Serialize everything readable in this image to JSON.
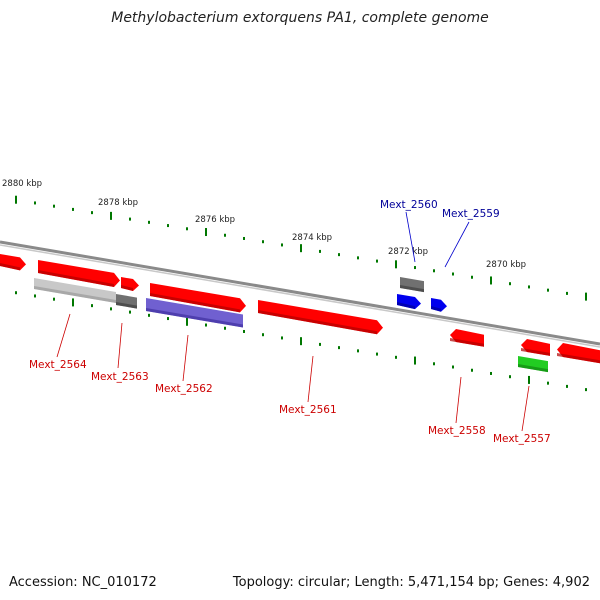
{
  "title": "Methylobacterium extorquens PA1, complete genome",
  "footer": {
    "accession": "Accession: NC_010172",
    "summary": "Topology: circular; Length: 5,471,154 bp; Genes: 4,902"
  },
  "colors": {
    "red_gene": "#ff0000",
    "blue_gene": "#0000ee",
    "grey_gene": "#707070",
    "light_grey_gene": "#c8c8c8",
    "purple_gene": "#7060d0",
    "green_gene": "#22cc22",
    "tick_green": "#007700",
    "label_red": "#cc0000",
    "label_blue": "#000099"
  },
  "scale_labels": [
    "2880 kbp",
    "2878 kbp",
    "2876 kbp",
    "2874 kbp",
    "2872 kbp",
    "2870 kbp"
  ],
  "genes": [
    {
      "label": "Mext_2564",
      "color": "red"
    },
    {
      "label": "Mext_2563",
      "color": "red"
    },
    {
      "label": "Mext_2562",
      "color": "red"
    },
    {
      "label": "Mext_2561",
      "color": "red"
    },
    {
      "label": "Mext_2560",
      "color": "blue"
    },
    {
      "label": "Mext_2559",
      "color": "blue"
    },
    {
      "label": "Mext_2558",
      "color": "red"
    },
    {
      "label": "Mext_2557",
      "color": "red"
    }
  ]
}
